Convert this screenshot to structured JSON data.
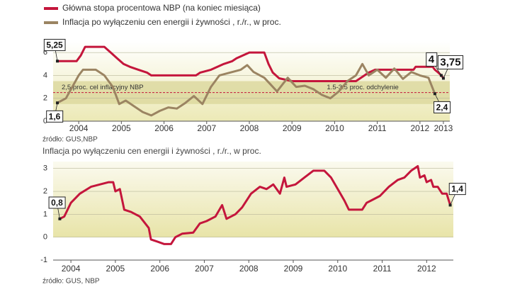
{
  "chart_data": [
    {
      "type": "line",
      "series": [
        {
          "name": "Główna stopa procentowa NBP (na koniec miesiąca)",
          "color": "#c4163c",
          "x": [
            2004.0,
            2004.45,
            2004.55,
            2004.65,
            2005.1,
            2005.25,
            2005.4,
            2005.55,
            2005.7,
            2005.9,
            2006.1,
            2006.2,
            2007.25,
            2007.35,
            2007.6,
            2007.9,
            2008.1,
            2008.2,
            2008.5,
            2008.85,
            2008.95,
            2009.05,
            2009.2,
            2009.5,
            2011.0,
            2011.1,
            2011.3,
            2011.45,
            2012.35,
            2012.4,
            2012.8,
            2012.85,
            2012.93,
            2013.0,
            2013.05
          ],
          "values": [
            5.25,
            5.25,
            5.75,
            6.5,
            6.5,
            6.0,
            5.5,
            5.0,
            4.75,
            4.5,
            4.25,
            4.0,
            4.0,
            4.25,
            4.5,
            5.0,
            5.25,
            5.5,
            6.0,
            6.0,
            5.0,
            4.25,
            3.75,
            3.5,
            3.5,
            3.75,
            4.25,
            4.5,
            4.5,
            4.75,
            4.75,
            4.5,
            4.25,
            4.0,
            3.75
          ],
          "value_labels": [
            "5,25",
            null,
            null,
            null,
            null,
            null,
            null,
            null,
            null,
            null,
            null,
            null,
            null,
            null,
            null,
            null,
            null,
            null,
            null,
            null,
            null,
            null,
            null,
            null,
            null,
            null,
            null,
            null,
            null,
            null,
            null,
            null,
            null,
            "4",
            "3,75"
          ]
        },
        {
          "name": "Inflacja po wyłączeniu cen energii i żywności , r./r., w proc.",
          "color": "#9b8462",
          "x": [
            2004.0,
            2004.2,
            2004.35,
            2004.5,
            2004.6,
            2004.9,
            2005.1,
            2005.3,
            2005.45,
            2005.6,
            2005.8,
            2006.0,
            2006.2,
            2006.4,
            2006.6,
            2006.8,
            2007.0,
            2007.2,
            2007.4,
            2007.6,
            2007.8,
            2008.0,
            2008.3,
            2008.45,
            2008.6,
            2008.85,
            2009.0,
            2009.15,
            2009.4,
            2009.6,
            2009.8,
            2010.0,
            2010.2,
            2010.4,
            2010.6,
            2010.8,
            2011.0,
            2011.15,
            2011.3,
            2011.5,
            2011.7,
            2011.9,
            2012.1,
            2012.3,
            2012.5,
            2012.7,
            2012.85
          ],
          "values": [
            1.6,
            2.0,
            3.0,
            4.0,
            4.5,
            4.5,
            4.0,
            3.0,
            1.5,
            1.8,
            1.3,
            0.8,
            0.5,
            0.9,
            1.2,
            1.1,
            1.6,
            2.2,
            1.5,
            3.0,
            4.0,
            4.2,
            4.5,
            4.9,
            4.3,
            3.8,
            3.2,
            2.6,
            3.8,
            3.0,
            3.1,
            2.8,
            2.3,
            2.0,
            2.6,
            3.5,
            4.0,
            5.0,
            4.0,
            4.5,
            3.8,
            4.6,
            3.7,
            4.3,
            4.0,
            3.8,
            2.4
          ],
          "value_labels": [
            "1,6",
            null,
            null,
            null,
            null,
            null,
            null,
            null,
            null,
            null,
            null,
            null,
            null,
            null,
            null,
            null,
            null,
            null,
            null,
            null,
            null,
            null,
            null,
            null,
            null,
            null,
            null,
            null,
            null,
            null,
            null,
            null,
            null,
            null,
            null,
            null,
            null,
            null,
            null,
            null,
            null,
            null,
            null,
            null,
            null,
            null,
            "2,4"
          ]
        }
      ],
      "band": [
        1.5,
        3.5
      ],
      "band_label": "1.5-3.5 proc. odchylenie",
      "target": 2.5,
      "target_label": "2,5 proc. cel inflacyjny NBP",
      "xlim": [
        2003.9,
        2013.2
      ],
      "xticks": [
        {
          "value": 2004.5,
          "label": "2004"
        },
        {
          "value": 2005.5,
          "label": "2005"
        },
        {
          "value": 2006.5,
          "label": "2006"
        },
        {
          "value": 2007.5,
          "label": "2007"
        },
        {
          "value": 2008.5,
          "label": "2008"
        },
        {
          "value": 2009.5,
          "label": "2009"
        },
        {
          "value": 2010.5,
          "label": "2010"
        },
        {
          "value": 2011.5,
          "label": "2011"
        },
        {
          "value": 2012.5,
          "label": "2012"
        },
        {
          "value": 2013.05,
          "label": "2013"
        }
      ],
      "ylim": [
        0,
        7
      ],
      "yticks": [
        0,
        2,
        4,
        6
      ],
      "grid": true,
      "source": "źródło: GUS,NBP"
    },
    {
      "type": "area-line",
      "title": "Inflacja po wyłączeniu cen energii i żywności , r./r., w proc.",
      "series": [
        {
          "color": "#c4163c",
          "x": [
            2004.0,
            2004.1,
            2004.25,
            2004.45,
            2004.7,
            2004.9,
            2005.1,
            2005.2,
            2005.25,
            2005.35,
            2005.45,
            2005.6,
            2005.8,
            2006.0,
            2006.05,
            2006.2,
            2006.35,
            2006.5,
            2006.6,
            2006.75,
            2007.0,
            2007.15,
            2007.3,
            2007.5,
            2007.65,
            2007.75,
            2007.95,
            2008.1,
            2008.3,
            2008.5,
            2008.65,
            2008.8,
            2008.95,
            2009.05,
            2009.1,
            2009.3,
            2009.5,
            2009.7,
            2009.95,
            2010.1,
            2010.25,
            2010.4,
            2010.5,
            2010.8,
            2010.9,
            2011.0,
            2011.2,
            2011.4,
            2011.6,
            2011.75,
            2011.9,
            2012.05,
            2012.1,
            2012.2,
            2012.25,
            2012.35,
            2012.4,
            2012.5,
            2012.6,
            2012.7,
            2012.78
          ],
          "values": [
            0.8,
            0.9,
            1.5,
            1.9,
            2.2,
            2.3,
            2.4,
            2.4,
            2.0,
            2.1,
            1.2,
            1.1,
            0.9,
            0.4,
            -0.1,
            -0.2,
            -0.3,
            -0.3,
            0.0,
            0.15,
            0.2,
            0.6,
            0.7,
            0.9,
            1.4,
            0.8,
            1.0,
            1.3,
            1.9,
            2.2,
            2.1,
            2.3,
            1.9,
            2.6,
            2.2,
            2.3,
            2.6,
            2.9,
            2.9,
            2.6,
            2.1,
            1.6,
            1.2,
            1.2,
            1.5,
            1.6,
            1.8,
            2.2,
            2.5,
            2.6,
            2.9,
            3.1,
            2.6,
            2.7,
            2.4,
            2.5,
            2.2,
            2.2,
            1.9,
            1.9,
            1.4
          ],
          "value_labels": [
            "0,8",
            null,
            null,
            null,
            null,
            null,
            null,
            null,
            null,
            null,
            null,
            null,
            null,
            null,
            null,
            null,
            null,
            null,
            null,
            null,
            null,
            null,
            null,
            null,
            null,
            null,
            null,
            null,
            null,
            null,
            null,
            null,
            null,
            null,
            null,
            null,
            null,
            null,
            null,
            null,
            null,
            null,
            null,
            null,
            null,
            null,
            null,
            null,
            null,
            null,
            null,
            null,
            null,
            null,
            null,
            null,
            null,
            null,
            null,
            null,
            "1,4"
          ]
        }
      ],
      "xlim": [
        2003.85,
        2012.85
      ],
      "xticks": [
        {
          "value": 2004.25,
          "label": "2004"
        },
        {
          "value": 2005.25,
          "label": "2005"
        },
        {
          "value": 2006.25,
          "label": "2006"
        },
        {
          "value": 2007.25,
          "label": "2007"
        },
        {
          "value": 2008.25,
          "label": "2008"
        },
        {
          "value": 2009.25,
          "label": "2009"
        },
        {
          "value": 2010.25,
          "label": "2010"
        },
        {
          "value": 2011.25,
          "label": "2011"
        },
        {
          "value": 2012.25,
          "label": "2012"
        }
      ],
      "ylim": [
        -1,
        3.3
      ],
      "yticks": [
        -1,
        0,
        1,
        2,
        3
      ],
      "grid": true,
      "source": "źródło: GUS, NBP"
    }
  ]
}
